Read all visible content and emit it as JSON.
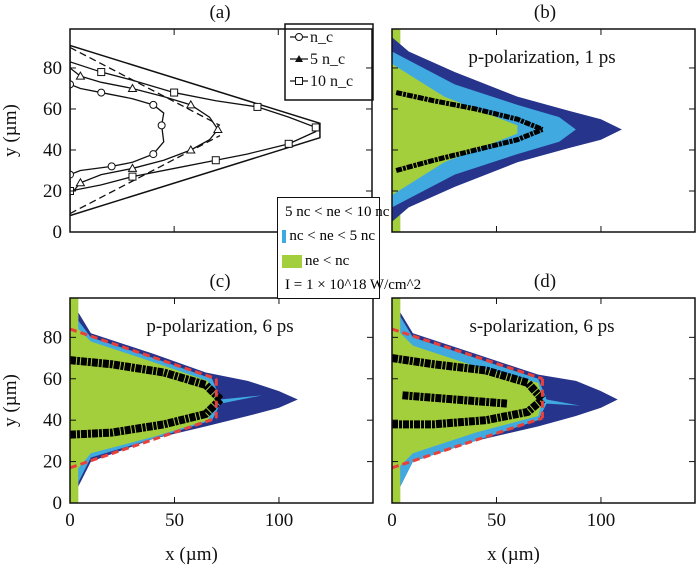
{
  "chart_data": [
    {
      "panel": "(a)",
      "type": "line",
      "xlim": [
        0,
        145
      ],
      "ylim": [
        0,
        99
      ],
      "yticks": [
        0,
        20,
        40,
        60,
        80
      ],
      "ylabel": "y (µm)",
      "target_outline": [
        [
          0,
          91
        ],
        [
          120,
          53
        ],
        [
          120,
          46
        ],
        [
          0,
          8
        ]
      ],
      "dashed_lines": [
        [
          [
            0,
            90
          ],
          [
            72,
            52
          ]
        ],
        [
          [
            0,
            9
          ],
          [
            72,
            47
          ]
        ]
      ],
      "legend": [
        "n_c",
        "5 n_c",
        "10 n_c"
      ],
      "series": [
        {
          "name": "n_c",
          "marker": "circle",
          "points": [
            [
              0,
              75
            ],
            [
              0,
              72
            ],
            [
              5,
              70
            ],
            [
              15,
              68
            ],
            [
              30,
              65
            ],
            [
              40,
              62
            ],
            [
              45,
              58
            ],
            [
              44,
              52
            ],
            [
              45,
              44
            ],
            [
              40,
              38
            ],
            [
              30,
              34
            ],
            [
              20,
              32
            ],
            [
              5,
              30
            ],
            [
              0,
              28
            ]
          ]
        },
        {
          "name": "5 n_c",
          "marker": "triangle",
          "points": [
            [
              0,
              80
            ],
            [
              5,
              76
            ],
            [
              15,
              73
            ],
            [
              30,
              70
            ],
            [
              45,
              66
            ],
            [
              58,
              62
            ],
            [
              67,
              56
            ],
            [
              71,
              50
            ],
            [
              67,
              45
            ],
            [
              58,
              40
            ],
            [
              45,
              35
            ],
            [
              30,
              31
            ],
            [
              15,
              28
            ],
            [
              5,
              24
            ],
            [
              0,
              18
            ]
          ]
        },
        {
          "name": "10 n_c",
          "marker": "square",
          "points": [
            [
              0,
              83
            ],
            [
              15,
              78
            ],
            [
              30,
              74
            ],
            [
              50,
              68
            ],
            [
              70,
              64
            ],
            [
              90,
              61
            ],
            [
              105,
              56
            ],
            [
              118,
              51
            ],
            [
              118,
              49
            ],
            [
              105,
              43
            ],
            [
              85,
              38
            ],
            [
              70,
              35
            ],
            [
              50,
              31
            ],
            [
              30,
              27
            ],
            [
              15,
              23
            ],
            [
              0,
              20
            ]
          ]
        }
      ]
    },
    {
      "panel": "(b)",
      "type": "area",
      "annotation": "p-polarization, 1 ps",
      "xlim": [
        0,
        145
      ],
      "ylim": [
        0,
        99
      ],
      "regions": {
        "dark": [
          [
            0,
            95
          ],
          [
            8,
            88
          ],
          [
            30,
            78
          ],
          [
            60,
            66
          ],
          [
            85,
            59
          ],
          [
            100,
            55
          ],
          [
            110,
            50
          ],
          [
            100,
            45
          ],
          [
            85,
            41
          ],
          [
            60,
            34
          ],
          [
            30,
            22
          ],
          [
            8,
            12
          ],
          [
            0,
            5
          ]
        ],
        "light": [
          [
            0,
            88
          ],
          [
            30,
            72
          ],
          [
            60,
            62
          ],
          [
            80,
            56
          ],
          [
            88,
            50
          ],
          [
            80,
            44
          ],
          [
            60,
            38
          ],
          [
            30,
            28
          ],
          [
            0,
            12
          ]
        ],
        "green": [
          [
            0,
            82
          ],
          [
            25,
            66
          ],
          [
            45,
            58
          ],
          [
            60,
            52
          ],
          [
            60,
            48
          ],
          [
            45,
            42
          ],
          [
            25,
            34
          ],
          [
            0,
            18
          ]
        ]
      },
      "intensity_bands": [
        [
          [
            2,
            68
          ],
          [
            20,
            64
          ],
          [
            40,
            60
          ],
          [
            60,
            55
          ],
          [
            72,
            50
          ]
        ],
        [
          [
            2,
            30
          ],
          [
            20,
            35
          ],
          [
            40,
            40
          ],
          [
            60,
            45
          ],
          [
            72,
            50
          ]
        ]
      ]
    },
    {
      "panel": "(c)",
      "type": "area",
      "annotation": "p-polarization, 6 ps",
      "xlim": [
        0,
        145
      ],
      "ylim": [
        0,
        99
      ],
      "xticks": [
        0,
        50,
        100
      ],
      "yticks": [
        0,
        20,
        40,
        60,
        80
      ],
      "xlabel": "x (µm)",
      "ylabel": "y (µm)",
      "regions": {
        "dark": [
          [
            4,
            92
          ],
          [
            10,
            82
          ],
          [
            40,
            72
          ],
          [
            65,
            63
          ],
          [
            85,
            59
          ],
          [
            100,
            54
          ],
          [
            109,
            50
          ],
          [
            100,
            46
          ],
          [
            85,
            42
          ],
          [
            65,
            37
          ],
          [
            40,
            31
          ],
          [
            10,
            20
          ],
          [
            4,
            8
          ]
        ],
        "light": [
          [
            4,
            88
          ],
          [
            10,
            80
          ],
          [
            40,
            70
          ],
          [
            68,
            60
          ],
          [
            72,
            50
          ],
          [
            92,
            52
          ],
          [
            72,
            48
          ],
          [
            68,
            40
          ],
          [
            40,
            31
          ],
          [
            10,
            22
          ],
          [
            4,
            10
          ]
        ],
        "green": [
          [
            0,
            88
          ],
          [
            10,
            78
          ],
          [
            40,
            68
          ],
          [
            66,
            59
          ],
          [
            70,
            50
          ],
          [
            66,
            40
          ],
          [
            40,
            32
          ],
          [
            10,
            24
          ],
          [
            0,
            12
          ]
        ]
      },
      "intensity_bands": [
        [
          [
            0,
            69
          ],
          [
            20,
            67
          ],
          [
            45,
            63
          ],
          [
            65,
            57
          ],
          [
            72,
            50
          ]
        ],
        [
          [
            0,
            33
          ],
          [
            20,
            34
          ],
          [
            45,
            38
          ],
          [
            65,
            43
          ],
          [
            72,
            50
          ]
        ]
      ],
      "red_dashed": [
        [
          [
            0,
            84
          ],
          [
            70,
            60
          ]
        ],
        [
          [
            0,
            17
          ],
          [
            70,
            41
          ]
        ],
        [
          [
            70,
            60
          ],
          [
            70,
            41
          ]
        ]
      ]
    },
    {
      "panel": "(d)",
      "type": "area",
      "annotation": "s-polarization, 6 ps",
      "xlim": [
        0,
        145
      ],
      "ylim": [
        0,
        99
      ],
      "xticks": [
        0,
        50,
        100
      ],
      "xlabel": "x (µm)",
      "regions": {
        "dark": [
          [
            4,
            92
          ],
          [
            10,
            82
          ],
          [
            40,
            72
          ],
          [
            70,
            62
          ],
          [
            88,
            59
          ],
          [
            100,
            54
          ],
          [
            108,
            50
          ],
          [
            100,
            46
          ],
          [
            88,
            42
          ],
          [
            70,
            37
          ],
          [
            40,
            30
          ],
          [
            10,
            20
          ],
          [
            4,
            8
          ]
        ],
        "light": [
          [
            4,
            90
          ],
          [
            10,
            80
          ],
          [
            40,
            70
          ],
          [
            70,
            60
          ],
          [
            74,
            50
          ],
          [
            90,
            47
          ],
          [
            74,
            48
          ],
          [
            70,
            40
          ],
          [
            40,
            30
          ],
          [
            10,
            20
          ],
          [
            4,
            8
          ]
        ],
        "green": [
          [
            0,
            86
          ],
          [
            10,
            76
          ],
          [
            40,
            66
          ],
          [
            70,
            58
          ],
          [
            72,
            50
          ],
          [
            70,
            42
          ],
          [
            40,
            34
          ],
          [
            10,
            24
          ],
          [
            0,
            14
          ]
        ]
      },
      "intensity_bands": [
        [
          [
            0,
            70
          ],
          [
            20,
            67
          ],
          [
            45,
            64
          ],
          [
            65,
            58
          ],
          [
            72,
            50
          ]
        ],
        [
          [
            0,
            38
          ],
          [
            20,
            38
          ],
          [
            45,
            40
          ],
          [
            65,
            44
          ],
          [
            72,
            50
          ]
        ],
        [
          [
            5,
            52
          ],
          [
            30,
            50
          ],
          [
            55,
            48
          ]
        ]
      ],
      "red_dashed": [
        [
          [
            0,
            84
          ],
          [
            72,
            60
          ]
        ],
        [
          [
            0,
            17
          ],
          [
            72,
            41
          ]
        ],
        [
          [
            72,
            60
          ],
          [
            72,
            41
          ]
        ]
      ]
    }
  ],
  "legend_density": {
    "items": [
      {
        "label": "5 nc < ne < 10 nc",
        "color": "#27348b"
      },
      {
        "label": "nc < ne < 5 nc",
        "color": "#3fa9e0"
      },
      {
        "label": "ne < nc",
        "color": "#a4cf3c"
      },
      {
        "label": "I = 1 × 10^18 W/cm^2",
        "color": "#000000"
      }
    ]
  },
  "colors": {
    "dark": "#27348b",
    "light": "#3fa9e0",
    "green": "#a4cf3c",
    "band": "#000000",
    "red": "#e8403a"
  }
}
